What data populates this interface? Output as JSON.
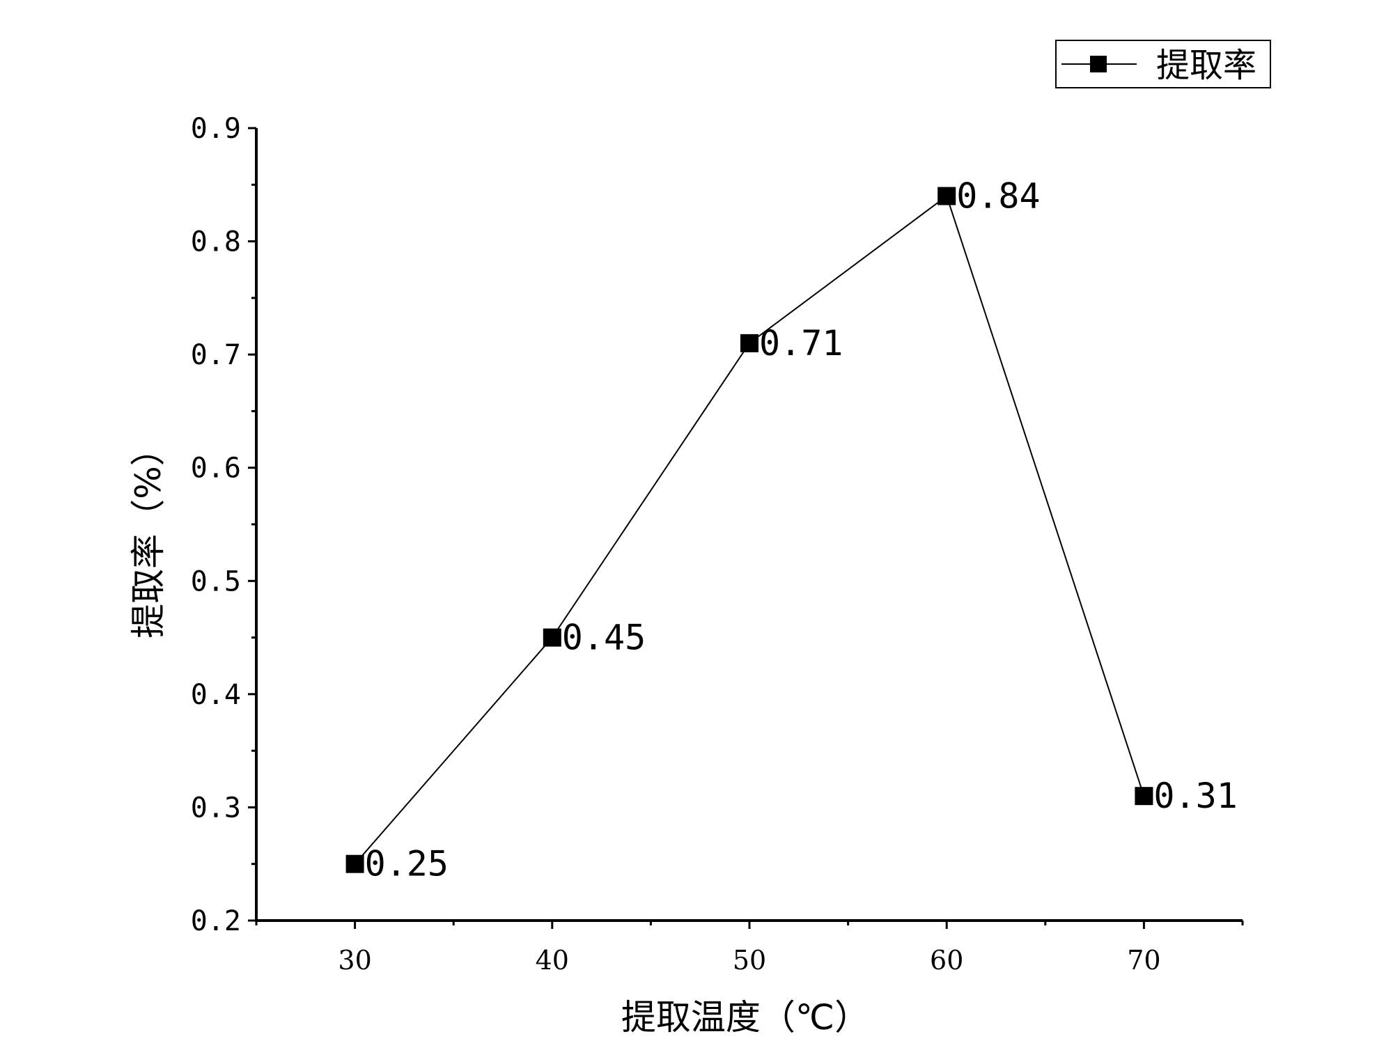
{
  "chart_data": {
    "type": "line",
    "x": [
      30,
      40,
      50,
      60,
      70
    ],
    "series": [
      {
        "name": "提取率",
        "values": [
          0.25,
          0.45,
          0.71,
          0.84,
          0.31
        ],
        "data_labels": [
          "0.25",
          "0.45",
          "0.71",
          "0.84",
          "0.31"
        ],
        "marker": "square",
        "color": "#000000"
      }
    ],
    "xlabel": "提取温度（℃）",
    "ylabel": "提取率（%）",
    "xlim": [
      25,
      75
    ],
    "ylim": [
      0.2,
      0.9
    ],
    "x_ticks": [
      30,
      40,
      50,
      60,
      70
    ],
    "x_tick_labels": [
      "30",
      "40",
      "50",
      "60",
      "70"
    ],
    "y_ticks": [
      0.2,
      0.3,
      0.4,
      0.5,
      0.6,
      0.7,
      0.8,
      0.9
    ],
    "y_tick_labels": [
      "0.2",
      "0.3",
      "0.4",
      "0.5",
      "0.6",
      "0.7",
      "0.8",
      "0.9"
    ],
    "grid": false,
    "legend_position": "top-right"
  }
}
